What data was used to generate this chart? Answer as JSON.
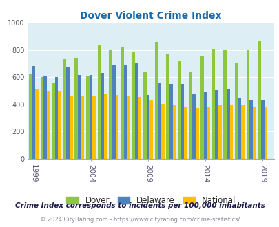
{
  "title": "Dover Violent Crime Index",
  "subtitle": "Crime Index corresponds to incidents per 100,000 inhabitants",
  "footer": "© 2024 CityRating.com - https://www.cityrating.com/crime-statistics/",
  "years": [
    1999,
    2000,
    2001,
    2002,
    2003,
    2004,
    2005,
    2006,
    2007,
    2008,
    2009,
    2010,
    2011,
    2012,
    2013,
    2014,
    2015,
    2016,
    2017,
    2018,
    2019
  ],
  "dover": [
    620,
    600,
    560,
    730,
    740,
    605,
    835,
    800,
    820,
    790,
    640,
    860,
    770,
    715,
    640,
    760,
    810,
    800,
    700,
    800,
    865
  ],
  "delaware": [
    680,
    610,
    600,
    675,
    615,
    615,
    630,
    685,
    690,
    705,
    470,
    560,
    550,
    548,
    480,
    490,
    505,
    510,
    450,
    430,
    430
  ],
  "national": [
    510,
    500,
    495,
    465,
    465,
    465,
    480,
    470,
    467,
    455,
    430,
    405,
    395,
    385,
    375,
    385,
    395,
    400,
    395,
    385,
    385
  ],
  "dover_color": "#8dc63f",
  "delaware_color": "#4f81bd",
  "national_color": "#ffc000",
  "bg_color": "#ddeef4",
  "xtick_years": [
    1999,
    2004,
    2009,
    2014,
    2019
  ],
  "ylim": [
    0,
    1000
  ],
  "yticks": [
    0,
    200,
    400,
    600,
    800,
    1000
  ]
}
